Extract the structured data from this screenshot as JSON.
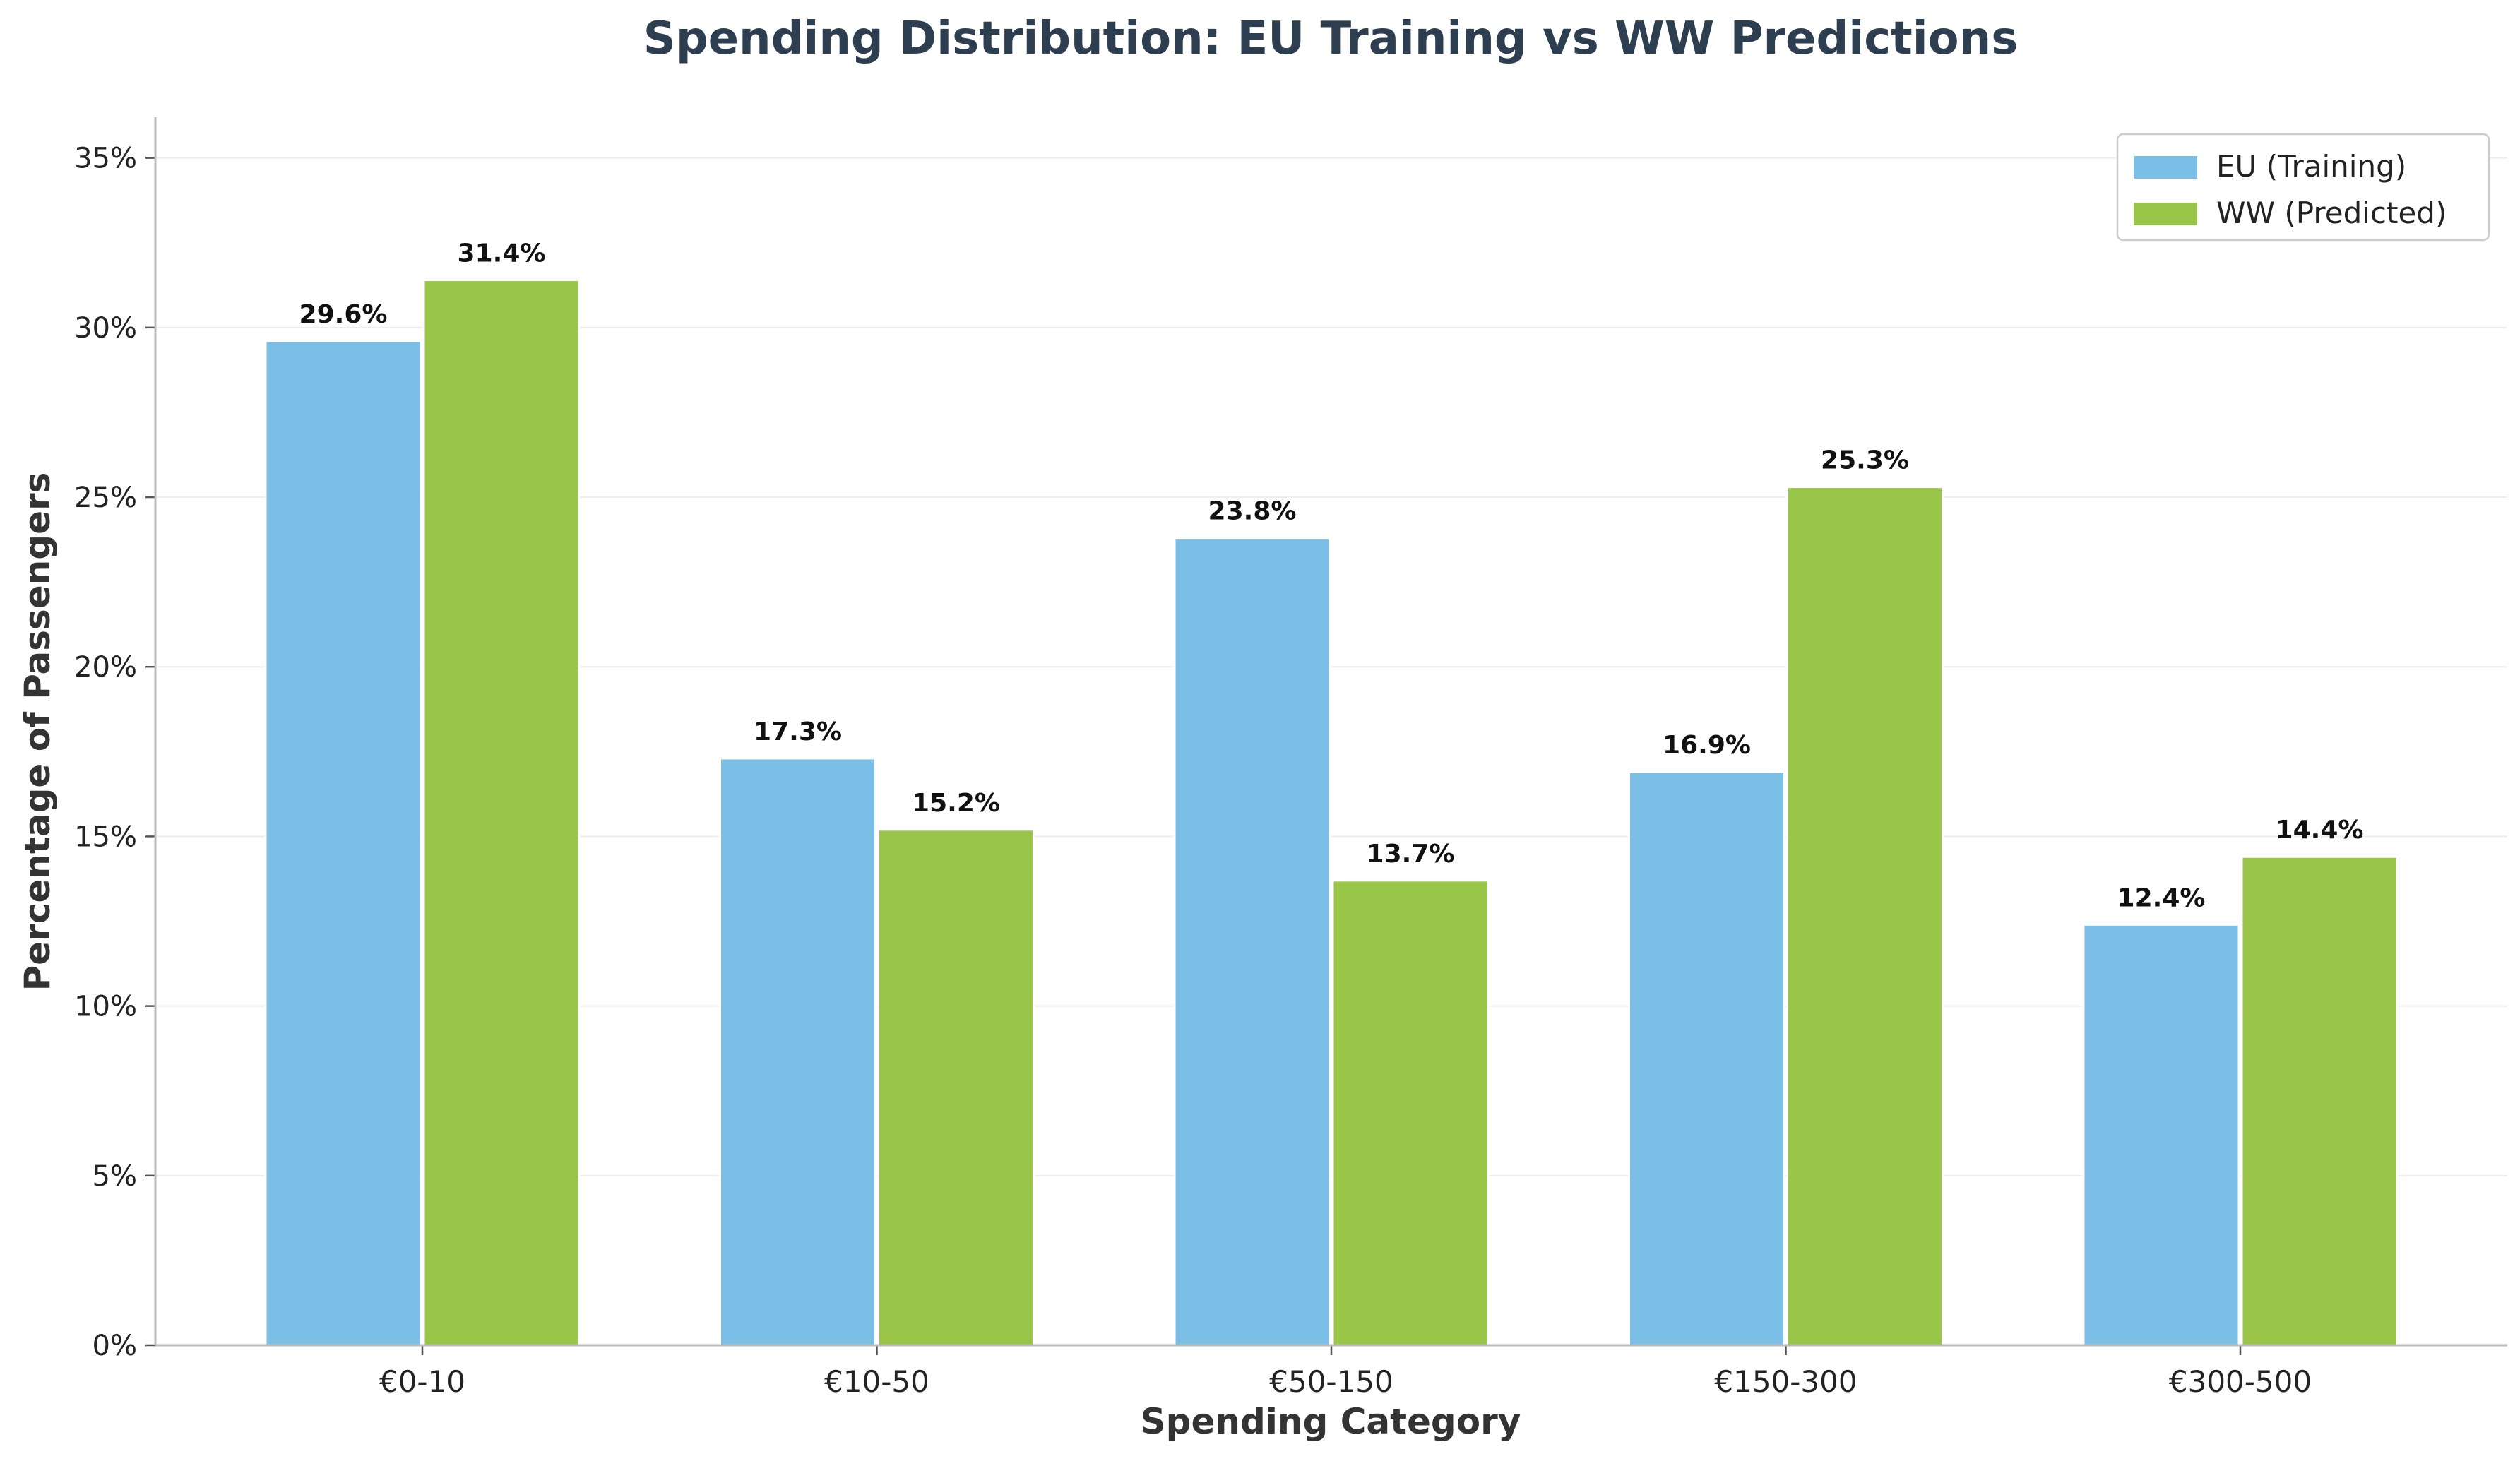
{
  "chart_data": {
    "type": "bar",
    "title": "Spending Distribution: EU Training vs WW Predictions",
    "xlabel": "Spending Category",
    "ylabel": "Percentage of Passengers",
    "categories": [
      "€0-10",
      "€10-50",
      "€50-150",
      "€150-300",
      "€300-500"
    ],
    "series": [
      {
        "name": "EU (Training)",
        "values": [
          29.6,
          17.3,
          23.8,
          16.9,
          12.4
        ],
        "labels": [
          "29.6%",
          "17.3%",
          "23.8%",
          "16.9%",
          "12.4%"
        ],
        "color": "#7bbfe6"
      },
      {
        "name": "WW (Predicted)",
        "values": [
          31.4,
          15.2,
          13.7,
          25.3,
          14.4
        ],
        "labels": [
          "31.4%",
          "15.2%",
          "13.7%",
          "25.3%",
          "14.4%"
        ],
        "color": "#99c648"
      }
    ],
    "ylim": [
      0,
      36.2
    ],
    "yticks": [
      0,
      5,
      10,
      15,
      20,
      25,
      30,
      35
    ],
    "ytick_labels": [
      "0%",
      "5%",
      "10%",
      "15%",
      "20%",
      "25%",
      "30%",
      "35%"
    ],
    "grid": true,
    "legend_position": "top-right"
  }
}
